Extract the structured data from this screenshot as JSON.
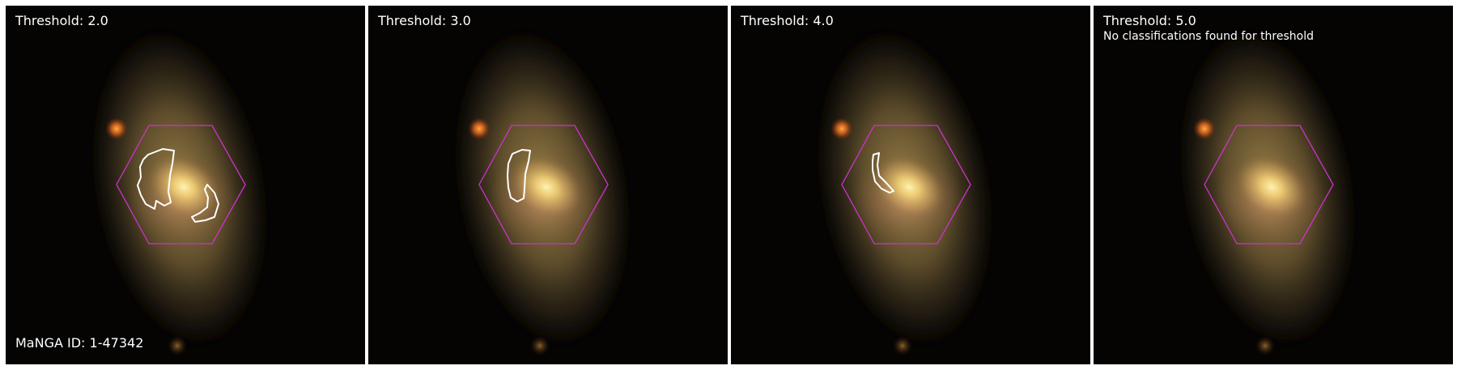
{
  "panels": [
    {
      "threshold_label": "Threshold: 2.0",
      "contour_count": 2
    },
    {
      "threshold_label": "Threshold: 3.0",
      "contour_count": 1
    },
    {
      "threshold_label": "Threshold: 4.0",
      "contour_count": 1
    },
    {
      "threshold_label": "Threshold: 5.0",
      "note": "No classifications found for threshold",
      "contour_count": 0
    }
  ],
  "manga_id_label": "MaNGA ID: 1-47342",
  "colors": {
    "hexagon": "#cc33cc",
    "contour": "#ffffff",
    "background": "#000000",
    "separator": "#ffffff"
  }
}
